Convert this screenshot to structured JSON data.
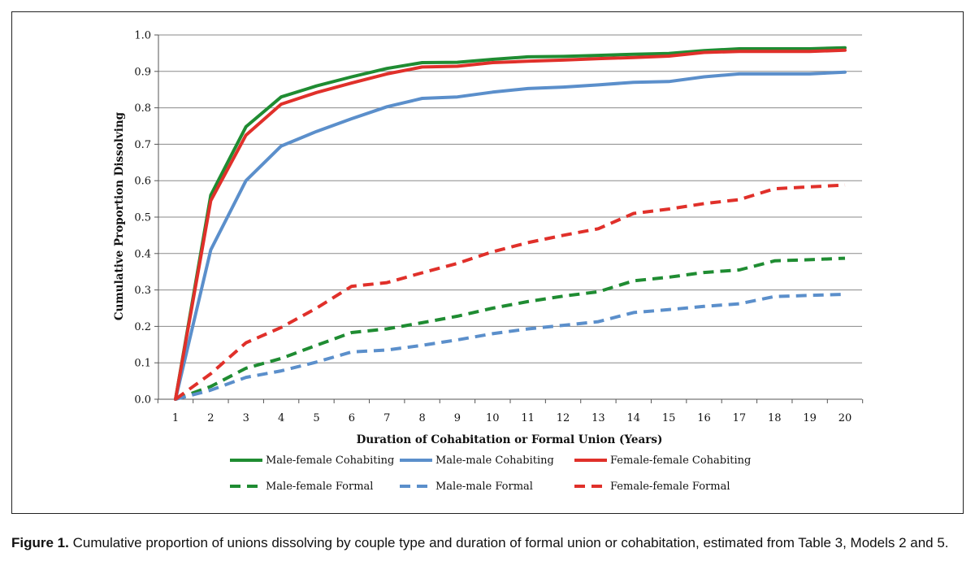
{
  "chart_data": {
    "type": "line",
    "title": "",
    "xlabel": "Duration of Cohabitation or Formal Union (Years)",
    "ylabel": "Cumulative Proportion Dissolving",
    "x": [
      1,
      2,
      3,
      4,
      5,
      6,
      7,
      8,
      9,
      10,
      11,
      12,
      13,
      14,
      15,
      16,
      17,
      18,
      19,
      20
    ],
    "ylim": [
      0,
      1.0
    ],
    "yticks": [
      "0.0",
      "0.1",
      "0.2",
      "0.3",
      "0.4",
      "0.5",
      "0.6",
      "0.7",
      "0.8",
      "0.9",
      "1.0"
    ],
    "xticks": [
      "1",
      "2",
      "3",
      "4",
      "5",
      "6",
      "7",
      "8",
      "9",
      "10",
      "11",
      "12",
      "13",
      "14",
      "15",
      "16",
      "17",
      "18",
      "19",
      "20"
    ],
    "grid": true,
    "legend_position": "bottom",
    "series": [
      {
        "name": "Male-female Cohabiting",
        "color": "#1f8c32",
        "dash": false,
        "values": [
          0.0,
          0.56,
          0.748,
          0.83,
          0.86,
          0.885,
          0.908,
          0.924,
          0.925,
          0.933,
          0.94,
          0.941,
          0.944,
          0.947,
          0.949,
          0.957,
          0.962,
          0.962,
          0.962,
          0.965
        ]
      },
      {
        "name": "Male-male Cohabiting",
        "color": "#5b8fcb",
        "dash": false,
        "values": [
          0.0,
          0.41,
          0.6,
          0.695,
          0.735,
          0.77,
          0.803,
          0.826,
          0.83,
          0.843,
          0.853,
          0.857,
          0.863,
          0.87,
          0.872,
          0.885,
          0.893,
          0.893,
          0.893,
          0.898
        ]
      },
      {
        "name": "Female-female Cohabiting",
        "color": "#e0302a",
        "dash": false,
        "values": [
          0.0,
          0.545,
          0.725,
          0.81,
          0.842,
          0.868,
          0.893,
          0.912,
          0.914,
          0.924,
          0.928,
          0.931,
          0.935,
          0.938,
          0.942,
          0.952,
          0.955,
          0.955,
          0.955,
          0.958
        ]
      },
      {
        "name": "Male-female Formal",
        "color": "#1f8c32",
        "dash": true,
        "values": [
          0.0,
          0.035,
          0.085,
          0.112,
          0.148,
          0.183,
          0.193,
          0.21,
          0.228,
          0.25,
          0.268,
          0.283,
          0.295,
          0.325,
          0.335,
          0.348,
          0.355,
          0.38,
          0.383,
          0.387
        ]
      },
      {
        "name": "Male-male Formal",
        "color": "#5b8fcb",
        "dash": true,
        "values": [
          0.0,
          0.025,
          0.06,
          0.078,
          0.102,
          0.13,
          0.135,
          0.148,
          0.163,
          0.18,
          0.193,
          0.203,
          0.213,
          0.238,
          0.246,
          0.255,
          0.262,
          0.282,
          0.285,
          0.288
        ]
      },
      {
        "name": "Female-female Formal",
        "color": "#e0302a",
        "dash": true,
        "values": [
          0.0,
          0.07,
          0.155,
          0.197,
          0.25,
          0.31,
          0.32,
          0.347,
          0.373,
          0.405,
          0.43,
          0.45,
          0.468,
          0.51,
          0.522,
          0.537,
          0.548,
          0.578,
          0.583,
          0.588
        ]
      }
    ]
  },
  "caption": {
    "label": "Figure 1.",
    "text": "Cumulative proportion of unions dissolving by couple type and duration of formal union or cohabitation, estimated from Table 3, Models 2 and 5."
  }
}
